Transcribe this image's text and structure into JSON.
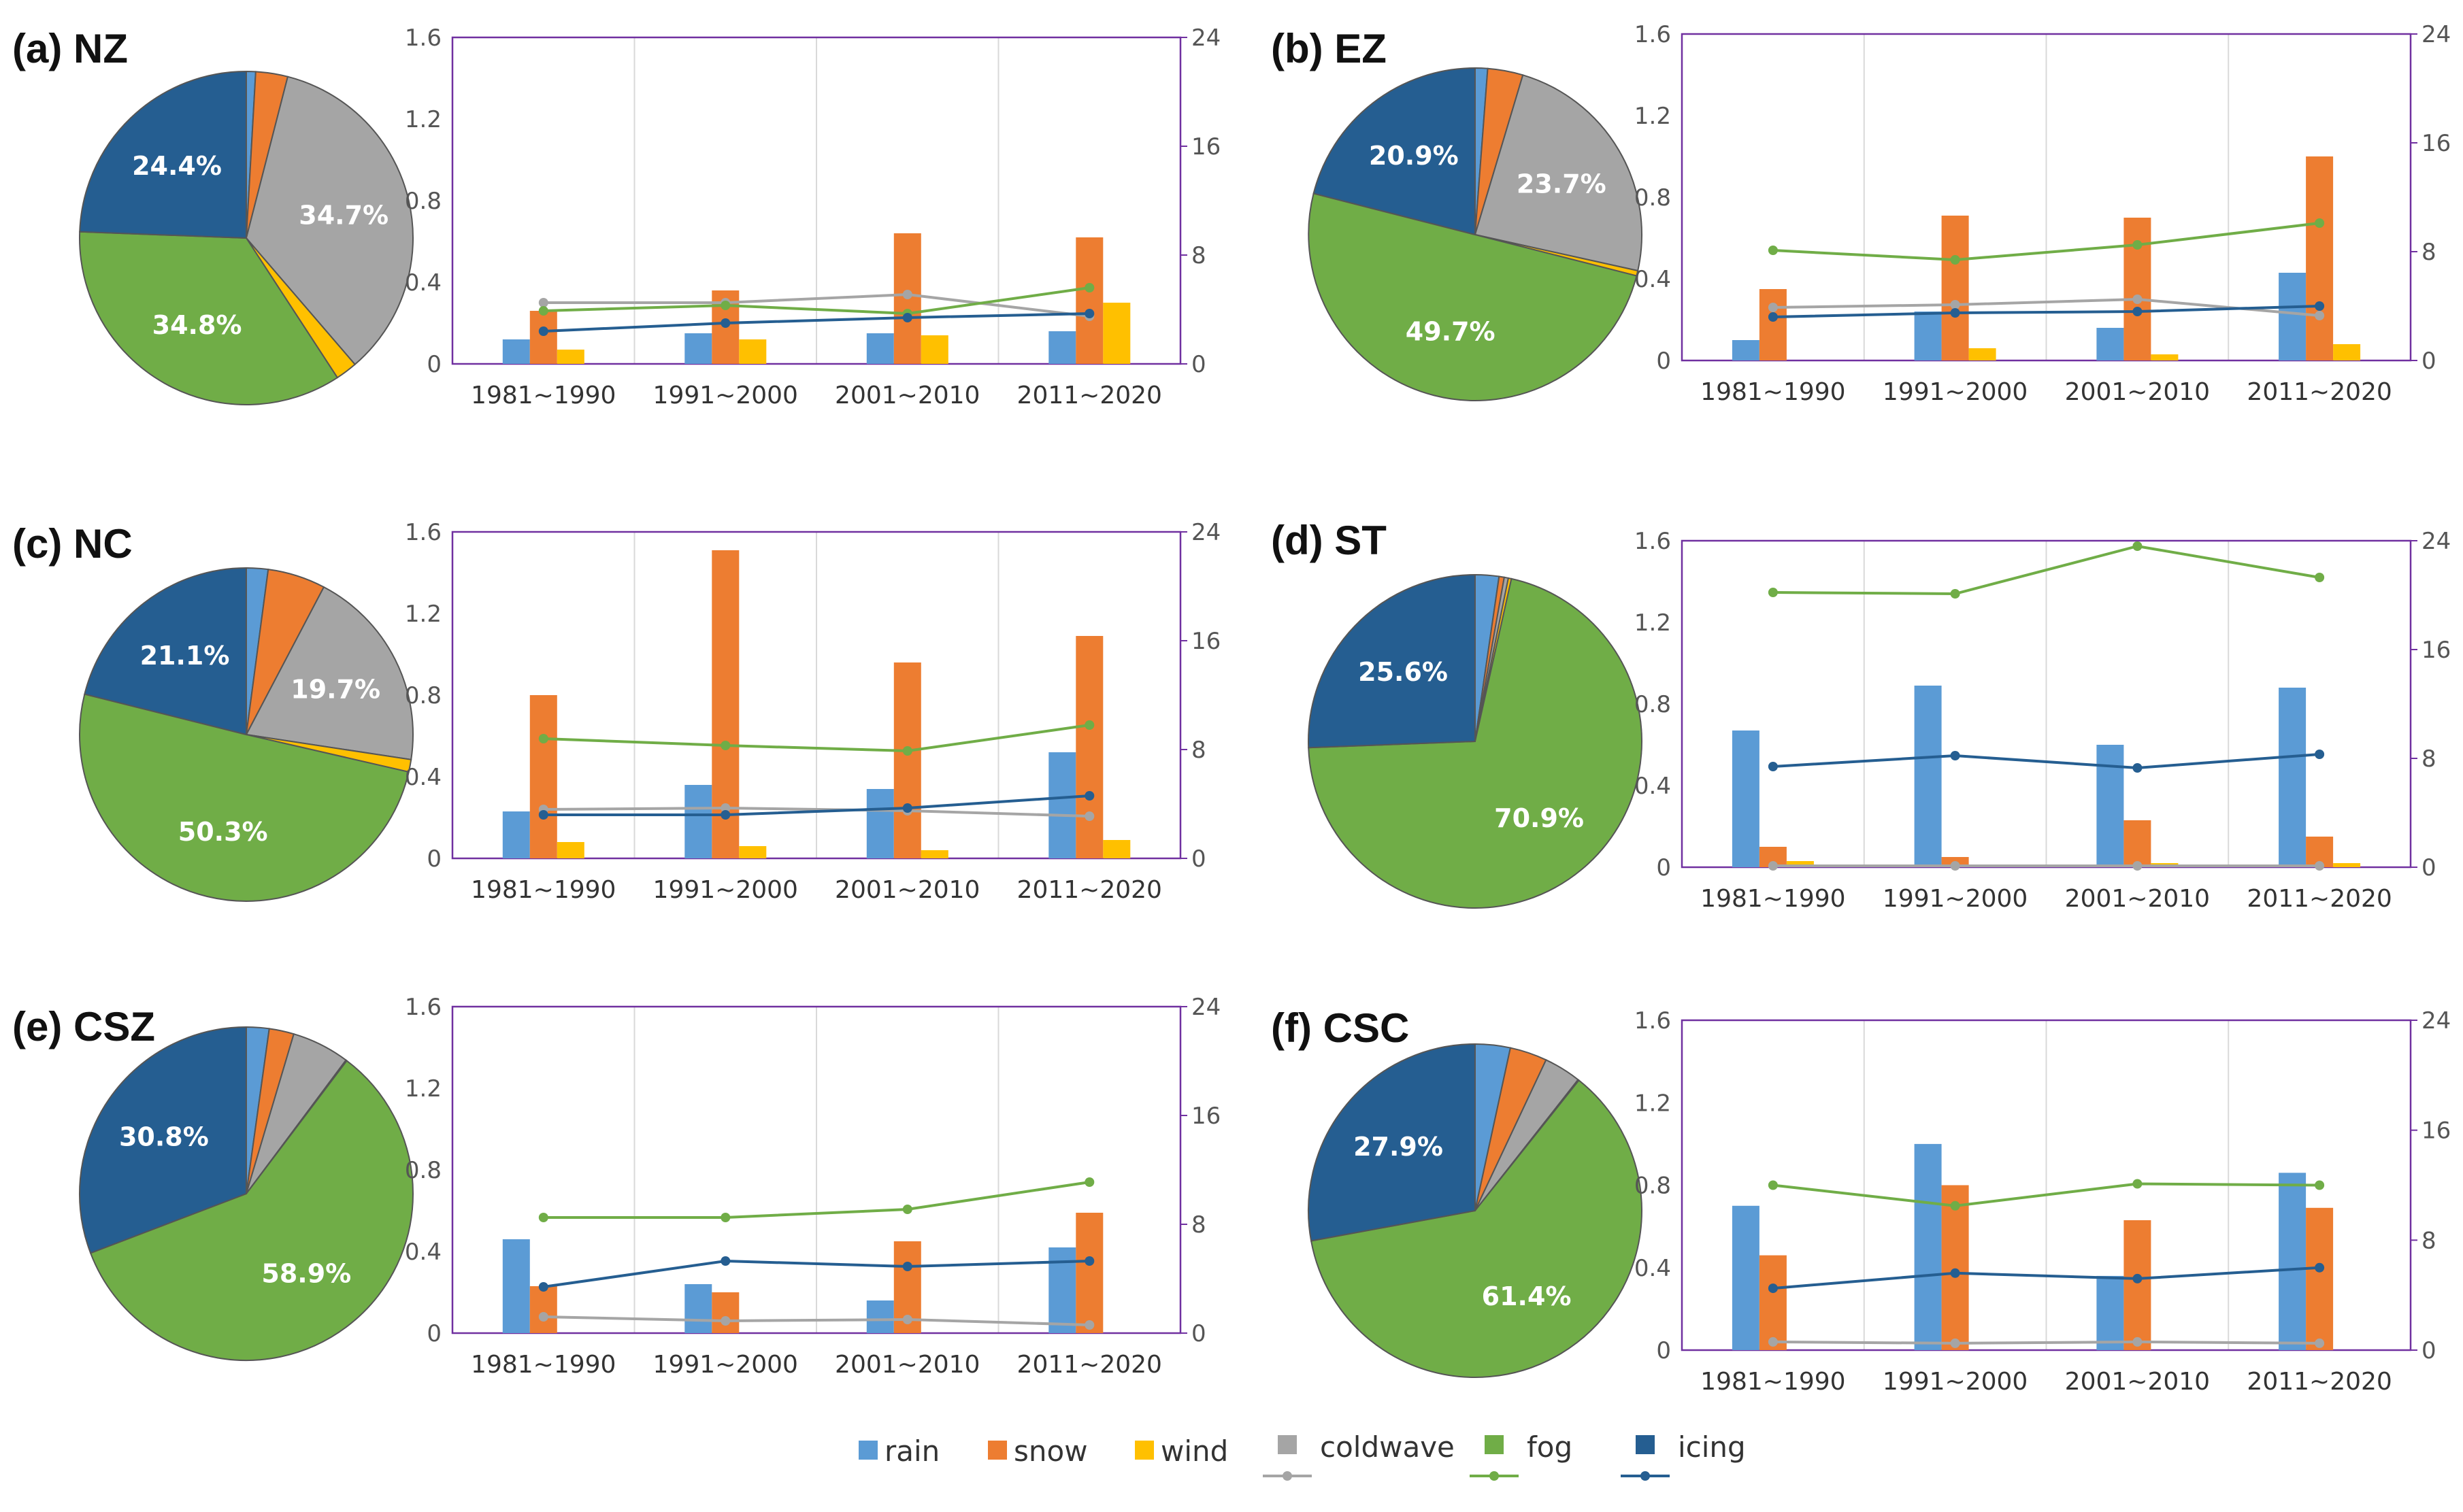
{
  "legend": {
    "rain": "rain",
    "snow": "snow",
    "wind": "wind",
    "coldwave": "coldwave",
    "fog": "fog",
    "icing": "icing"
  },
  "colors": {
    "rain": "#5b9bd5",
    "snow": "#ed7d31",
    "wind": "#ffc000",
    "coldwave": "#a5a5a5",
    "fog": "#70ad47",
    "icing": "#255e91",
    "frame": "#7030a0",
    "grid": "#d9d9d9"
  },
  "chart_data": [
    {
      "panel": "(a) NZ",
      "type": "pie+bar+line",
      "pie": {
        "order": [
          "rain",
          "snow",
          "coldwave",
          "wind",
          "fog",
          "icing"
        ],
        "values": [
          0.9,
          3.1,
          34.7,
          2.1,
          34.8,
          24.4
        ],
        "labels": [
          "",
          "",
          "34.7%",
          "",
          "34.8%",
          "24.4%"
        ]
      },
      "categories": [
        "1981~1990",
        "1991~2000",
        "2001~2010",
        "2011~2020"
      ],
      "left_axis": {
        "ylim": [
          0,
          1.6
        ],
        "ticks": [
          "0",
          "0.4",
          "0.8",
          "1.2",
          "1.6"
        ]
      },
      "right_axis": {
        "ylim": [
          0,
          24
        ],
        "ticks": [
          "0",
          "8",
          "16",
          "24"
        ]
      },
      "bars": {
        "rain": [
          0.12,
          0.15,
          0.15,
          0.16
        ],
        "snow": [
          0.26,
          0.36,
          0.64,
          0.62
        ],
        "wind": [
          0.07,
          0.12,
          0.14,
          0.3
        ]
      },
      "lines": {
        "coldwave": [
          4.5,
          4.5,
          5.1,
          3.5
        ],
        "fog": [
          3.9,
          4.3,
          3.7,
          5.6
        ],
        "icing": [
          2.4,
          3.0,
          3.4,
          3.7
        ]
      }
    },
    {
      "panel": "(b) EZ",
      "type": "pie+bar+line",
      "pie": {
        "order": [
          "rain",
          "snow",
          "coldwave",
          "wind",
          "fog",
          "icing"
        ],
        "values": [
          1.2,
          3.4,
          23.7,
          0.5,
          49.7,
          20.9
        ],
        "labels": [
          "",
          "",
          "23.7%",
          "",
          "49.7%",
          "20.9%"
        ]
      },
      "categories": [
        "1981~1990",
        "1991~2000",
        "2001~2010",
        "2011~2020"
      ],
      "left_axis": {
        "ylim": [
          0,
          1.6
        ],
        "ticks": [
          "0",
          "0.4",
          "0.8",
          "1.2",
          "1.6"
        ]
      },
      "right_axis": {
        "ylim": [
          0,
          24
        ],
        "ticks": [
          "0",
          "8",
          "16",
          "24"
        ]
      },
      "bars": {
        "rain": [
          0.1,
          0.24,
          0.16,
          0.43
        ],
        "snow": [
          0.35,
          0.71,
          0.7,
          1.0
        ],
        "wind": [
          0.0,
          0.06,
          0.03,
          0.08
        ]
      },
      "lines": {
        "coldwave": [
          3.9,
          4.1,
          4.5,
          3.3
        ],
        "fog": [
          8.1,
          7.4,
          8.5,
          10.1
        ],
        "icing": [
          3.2,
          3.5,
          3.6,
          4.0
        ]
      }
    },
    {
      "panel": "(c) NC",
      "type": "pie+bar+line",
      "pie": {
        "order": [
          "rain",
          "snow",
          "coldwave",
          "wind",
          "fog",
          "icing"
        ],
        "values": [
          2.1,
          5.6,
          19.7,
          1.2,
          50.3,
          21.1
        ],
        "labels": [
          "",
          "",
          "19.7%",
          "",
          "50.3%",
          "21.1%"
        ]
      },
      "categories": [
        "1981~1990",
        "1991~2000",
        "2001~2010",
        "2011~2020"
      ],
      "left_axis": {
        "ylim": [
          0,
          1.6
        ],
        "ticks": [
          "0",
          "0.4",
          "0.8",
          "1.2",
          "1.6"
        ]
      },
      "right_axis": {
        "ylim": [
          0,
          24
        ],
        "ticks": [
          "0",
          "8",
          "16",
          "24"
        ]
      },
      "bars": {
        "rain": [
          0.23,
          0.36,
          0.34,
          0.52
        ],
        "snow": [
          0.8,
          1.51,
          0.96,
          1.09
        ],
        "wind": [
          0.08,
          0.06,
          0.04,
          0.09
        ]
      },
      "lines": {
        "coldwave": [
          3.6,
          3.7,
          3.5,
          3.1
        ],
        "fog": [
          8.8,
          8.3,
          7.9,
          9.8
        ],
        "icing": [
          3.2,
          3.2,
          3.7,
          4.6
        ]
      }
    },
    {
      "panel": "(d) ST",
      "type": "pie+bar+line",
      "pie": {
        "order": [
          "rain",
          "snow",
          "coldwave",
          "wind",
          "fog",
          "icing"
        ],
        "values": [
          2.3,
          0.5,
          0.4,
          0.3,
          70.9,
          25.6
        ],
        "labels": [
          "",
          "",
          "",
          "",
          "70.9%",
          "25.6%"
        ]
      },
      "categories": [
        "1981~1990",
        "1991~2000",
        "2001~2010",
        "2011~2020"
      ],
      "left_axis": {
        "ylim": [
          0,
          1.6
        ],
        "ticks": [
          "0",
          "0.4",
          "0.8",
          "1.2",
          "1.6"
        ]
      },
      "right_axis": {
        "ylim": [
          0,
          24
        ],
        "ticks": [
          "0",
          "8",
          "16",
          "24"
        ]
      },
      "bars": {
        "rain": [
          0.67,
          0.89,
          0.6,
          0.88
        ],
        "snow": [
          0.1,
          0.05,
          0.23,
          0.15
        ],
        "wind": [
          0.03,
          0.01,
          0.02,
          0.02
        ]
      },
      "lines": {
        "coldwave": [
          0.1,
          0.1,
          0.1,
          0.1
        ],
        "fog": [
          20.2,
          20.1,
          23.6,
          21.3
        ],
        "icing": [
          7.4,
          8.2,
          7.3,
          8.3
        ]
      }
    },
    {
      "panel": "(e) CSZ",
      "type": "pie+bar+line",
      "pie": {
        "order": [
          "rain",
          "snow",
          "coldwave",
          "wind",
          "fog",
          "icing"
        ],
        "values": [
          2.2,
          2.4,
          5.6,
          0.1,
          58.9,
          30.8
        ],
        "labels": [
          "",
          "",
          "",
          "",
          "58.9%",
          "30.8%"
        ]
      },
      "categories": [
        "1981~1990",
        "1991~2000",
        "2001~2010",
        "2011~2020"
      ],
      "left_axis": {
        "ylim": [
          0,
          1.6
        ],
        "ticks": [
          "0",
          "0.4",
          "0.8",
          "1.2",
          "1.6"
        ]
      },
      "right_axis": {
        "ylim": [
          0,
          24
        ],
        "ticks": [
          "0",
          "8",
          "16",
          "24"
        ]
      },
      "bars": {
        "rain": [
          0.46,
          0.24,
          0.16,
          0.42
        ],
        "snow": [
          0.23,
          0.2,
          0.45,
          0.59
        ],
        "wind": [
          0.0,
          0.0,
          0.0,
          0.0
        ]
      },
      "lines": {
        "coldwave": [
          1.2,
          0.9,
          1.0,
          0.6
        ],
        "fog": [
          8.5,
          8.5,
          9.1,
          11.1
        ],
        "icing": [
          3.4,
          5.3,
          4.9,
          5.3
        ]
      }
    },
    {
      "panel": "(f) CSC",
      "type": "pie+bar+line",
      "pie": {
        "order": [
          "rain",
          "snow",
          "coldwave",
          "wind",
          "fog",
          "icing"
        ],
        "values": [
          3.4,
          3.6,
          3.6,
          0.1,
          61.4,
          27.9
        ],
        "labels": [
          "",
          "",
          "",
          "",
          "61.4%",
          "27.9%"
        ]
      },
      "categories": [
        "1981~1990",
        "1991~2000",
        "2001~2010",
        "2011~2020"
      ],
      "left_axis": {
        "ylim": [
          0,
          1.6
        ],
        "ticks": [
          "0",
          "0.4",
          "0.8",
          "1.2",
          "1.6"
        ]
      },
      "right_axis": {
        "ylim": [
          0,
          24
        ],
        "ticks": [
          "0",
          "8",
          "16",
          "24"
        ]
      },
      "bars": {
        "rain": [
          0.7,
          1.0,
          0.36,
          0.86
        ],
        "snow": [
          0.46,
          0.8,
          0.63,
          0.69
        ],
        "wind": [
          0.0,
          0.0,
          0.0,
          0.0
        ]
      },
      "lines": {
        "coldwave": [
          0.6,
          0.5,
          0.6,
          0.5
        ],
        "fog": [
          12.0,
          10.5,
          12.1,
          12.0
        ],
        "icing": [
          4.5,
          5.6,
          5.2,
          6.0
        ]
      }
    }
  ]
}
